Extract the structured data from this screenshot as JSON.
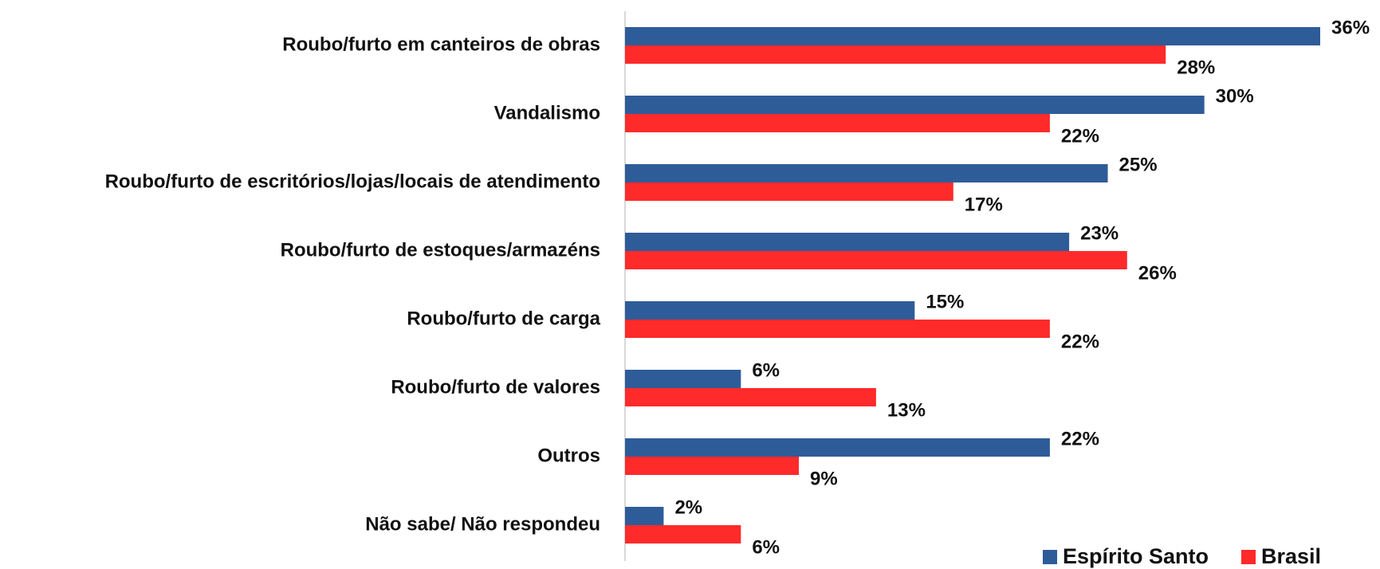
{
  "chart_data": {
    "type": "bar",
    "orientation": "horizontal",
    "categories": [
      "Roubo/furto em canteiros de obras",
      "Vandalismo",
      "Roubo/furto de escritórios/lojas/locais de atendimento",
      "Roubo/furto de estoques/armazéns",
      "Roubo/furto de carga",
      "Roubo/furto de valores",
      "Outros",
      "Não sabe/ Não respondeu"
    ],
    "series": [
      {
        "name": "Espírito Santo",
        "color": "#2e5c99",
        "values": [
          36,
          30,
          25,
          23,
          15,
          6,
          22,
          2
        ],
        "value_labels": [
          "36%",
          "30%",
          "25%",
          "23%",
          "15%",
          "6%",
          "22%",
          "2%"
        ]
      },
      {
        "name": "Brasil",
        "color": "#ff2a2a",
        "values": [
          28,
          22,
          17,
          26,
          22,
          13,
          9,
          6
        ],
        "value_labels": [
          "28%",
          "22%",
          "17%",
          "26%",
          "22%",
          "13%",
          "9%",
          "6%"
        ]
      }
    ],
    "xlim": [
      0,
      36
    ],
    "legend": "bottom-right"
  }
}
